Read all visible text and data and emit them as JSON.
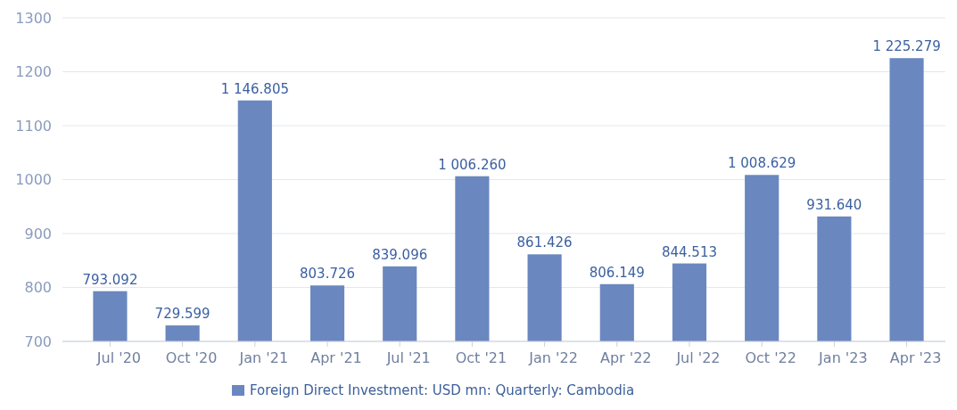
{
  "chart_data": {
    "type": "bar",
    "categories": [
      "Jul '20",
      "Oct '20",
      "Jan '21",
      "Apr '21",
      "Jul '21",
      "Oct '21",
      "Jan '22",
      "Apr '22",
      "Jul '22",
      "Oct '22",
      "Jan '23",
      "Apr '23"
    ],
    "series": [
      {
        "name": "Foreign Direct Investment: USD mn: Quarterly: Cambodia",
        "color": "#6a88bf",
        "values": [
          793.092,
          729.599,
          1146.805,
          803.726,
          839.096,
          1006.26,
          861.426,
          806.149,
          844.513,
          1008.629,
          931.64,
          1225.279
        ]
      }
    ],
    "value_labels": [
      "793.092",
      "729.599",
      "1 146.805",
      "803.726",
      "839.096",
      "1 006.260",
      "861.426",
      "806.149",
      "844.513",
      "1 008.629",
      "931.640",
      "1 225.279"
    ],
    "ylim": [
      700,
      1300
    ],
    "yticks": [
      700,
      800,
      900,
      1000,
      1100,
      1200,
      1300
    ],
    "grid": "y",
    "legend": "bottom"
  }
}
